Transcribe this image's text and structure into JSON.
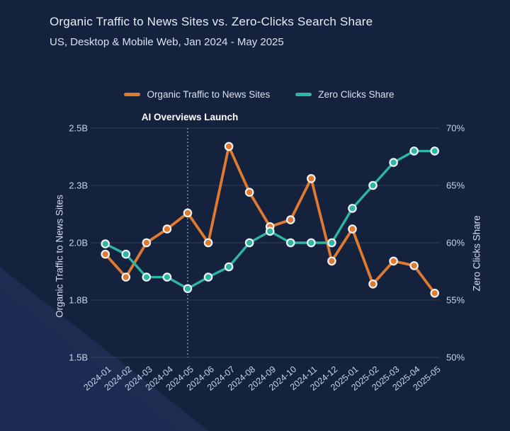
{
  "header": {
    "title": "Organic Traffic to News Sites vs. Zero-Clicks Search Share",
    "subtitle": "US, Desktop & Mobile Web, Jan 2024 - May 2025"
  },
  "chart_data": {
    "type": "line",
    "categories": [
      "2024-01",
      "2024-02",
      "2024-03",
      "2024-04",
      "2024-05",
      "2024-06",
      "2024-07",
      "2024-08",
      "2024-09",
      "2024-10",
      "2024-11",
      "2024-12",
      "2025-01",
      "2025-02",
      "2025-03",
      "2025-04",
      "2025-05"
    ],
    "series": [
      {
        "name": "Organic Traffic to News Sites",
        "axis": "left",
        "color": "#E07A30",
        "values": [
          1.95,
          1.85,
          2.0,
          2.06,
          2.13,
          2.0,
          2.42,
          2.22,
          2.07,
          2.1,
          2.28,
          1.92,
          2.06,
          1.82,
          1.92,
          1.9,
          1.78
        ]
      },
      {
        "name": "Zero Clicks Share",
        "axis": "right",
        "color": "#2CB6A3",
        "values": [
          59.9,
          59.0,
          57.0,
          57.0,
          56.0,
          57.0,
          57.9,
          60.0,
          61.0,
          60.0,
          60.0,
          60.0,
          63.0,
          65.0,
          67.0,
          68.0,
          68.0
        ]
      }
    ],
    "ylabel_left": "Organic Traffic to News Sites",
    "ylabel_right": "Zero Clicks Share",
    "left_axis": {
      "min": 1.5,
      "max": 2.5,
      "ticks": [
        "2.5B",
        "2.3B",
        "2.0B",
        "1.8B",
        "1.5B"
      ]
    },
    "right_axis": {
      "min": 50,
      "max": 70,
      "ticks": [
        "70%",
        "65%",
        "60%",
        "55%",
        "50%"
      ]
    },
    "annotation": {
      "label": "AI Overviews Launch",
      "category": "2024-05"
    },
    "legend_position": "top-center",
    "grid": "horizontal-only",
    "marker_stroke": "#F2F4F8",
    "tick_color": "#C8D3E6"
  }
}
